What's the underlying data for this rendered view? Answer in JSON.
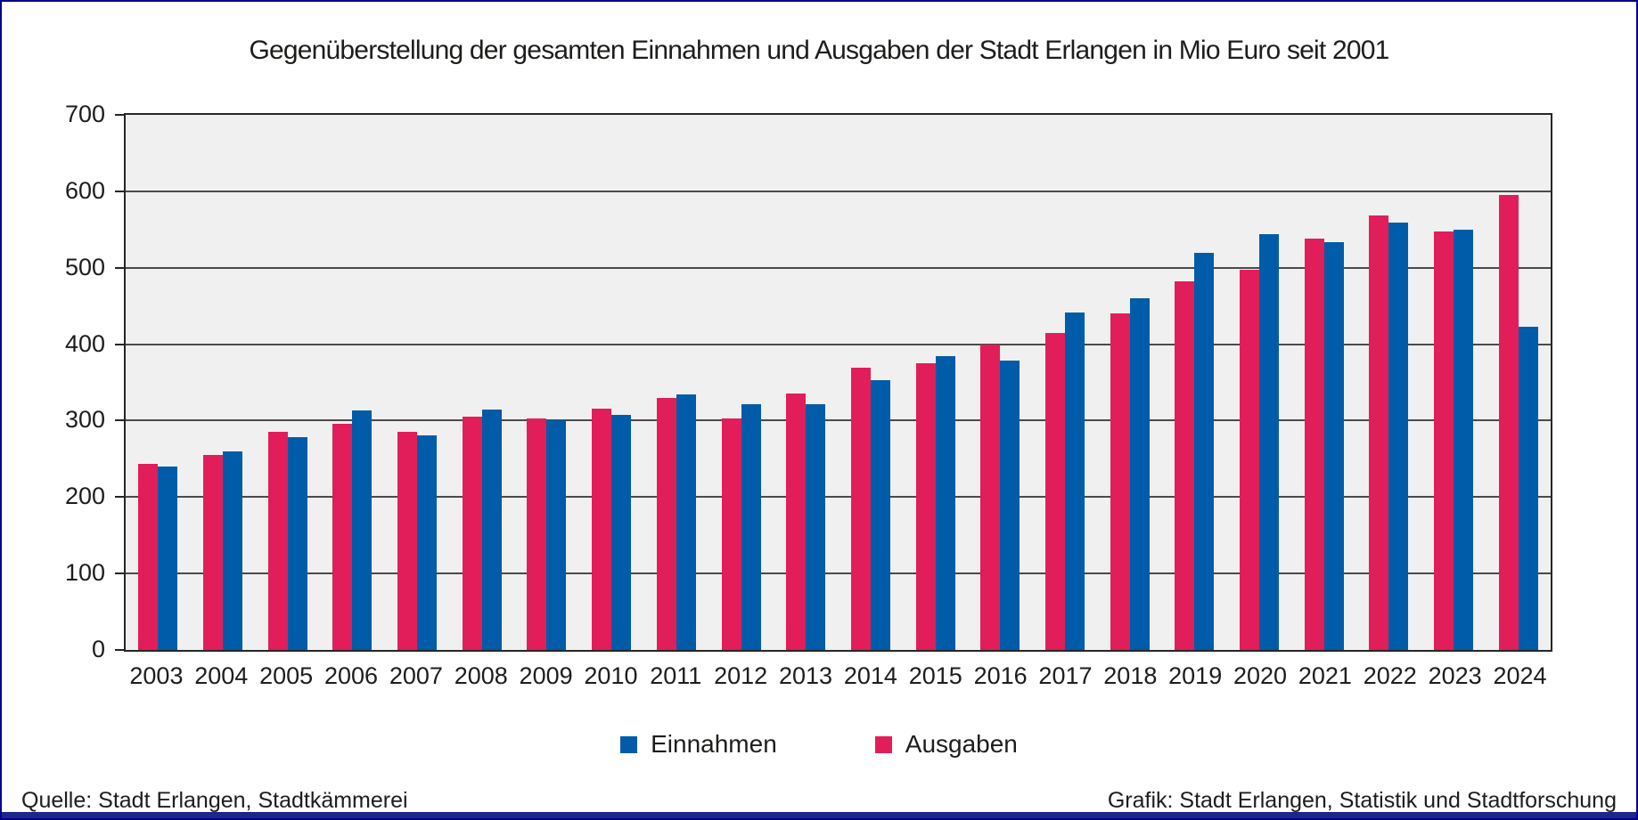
{
  "title": "Gegenüberstellung der gesamten Einnahmen und Ausgaben der Stadt Erlangen in Mio Euro seit 2001",
  "footer": {
    "source_left": "Quelle: Stadt Erlangen, Stadtkämmerei",
    "source_right": "Grafik: Stadt Erlangen, Statistik und Stadtforschung"
  },
  "legend": [
    {
      "label": "Einnahmen",
      "color": "#005CA8"
    },
    {
      "label": "Ausgaben",
      "color": "#E11E5A"
    }
  ],
  "colors": {
    "bar_blue": "#005CA8",
    "bar_red": "#E11E5A",
    "plot_background": "#F0F0F0",
    "gridline": "#4A4A4A",
    "plot_border": "#262626",
    "text": "#1D1D1B",
    "frame_border": "#000090",
    "accent_strip": "#1C2786"
  },
  "chart_data": {
    "type": "bar",
    "title": "Gegenüberstellung der gesamten Einnahmen und Ausgaben der Stadt Erlangen in Mio Euro seit 2001",
    "xlabel": "",
    "ylabel": "",
    "categories": [
      "2003",
      "2004",
      "2005",
      "2006",
      "2007",
      "2008",
      "2009",
      "2010",
      "2011",
      "2012",
      "2013",
      "2014",
      "2015",
      "2016",
      "2017",
      "2018",
      "2019",
      "2020",
      "2021",
      "2022",
      "2023",
      "2024"
    ],
    "series": [
      {
        "name": "Ausgaben",
        "color": "#E11E5A",
        "draw_order": 1,
        "values": [
          243,
          255,
          285,
          296,
          285,
          305,
          303,
          316,
          330,
          303,
          335,
          369,
          375,
          399,
          415,
          440,
          482,
          497,
          538,
          568,
          548,
          595
        ]
      },
      {
        "name": "Einnahmen",
        "color": "#005CA8",
        "draw_order": 2,
        "values": [
          240,
          260,
          278,
          313,
          281,
          314,
          301,
          307,
          334,
          321,
          322,
          353,
          384,
          378,
          441,
          460,
          519,
          544,
          533,
          559,
          550,
          423
        ]
      }
    ],
    "ylim": [
      0,
      700
    ],
    "yticks": [
      0,
      100,
      200,
      300,
      400,
      500,
      600,
      700
    ],
    "grid": "horizontal",
    "legend_position": "bottom"
  }
}
